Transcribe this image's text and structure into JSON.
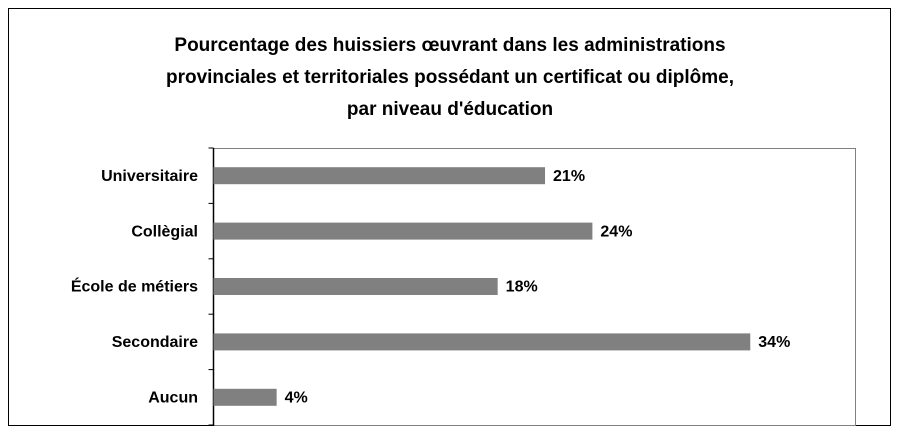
{
  "chart_data": {
    "type": "bar",
    "orientation": "horizontal",
    "title": "Pourcentage des huissiers œuvrant dans les administrations provinciales et territoriales possédant un certificat ou diplôme, par niveau d'éducation",
    "categories": [
      "Universitaire",
      "Collègial",
      "École de métiers",
      "Secondaire",
      "Aucun"
    ],
    "values": [
      21,
      24,
      18,
      34,
      4
    ],
    "value_labels": [
      "21%",
      "24%",
      "18%",
      "34%",
      "4%"
    ],
    "color": "#808080",
    "xlim": [
      0,
      40
    ]
  }
}
